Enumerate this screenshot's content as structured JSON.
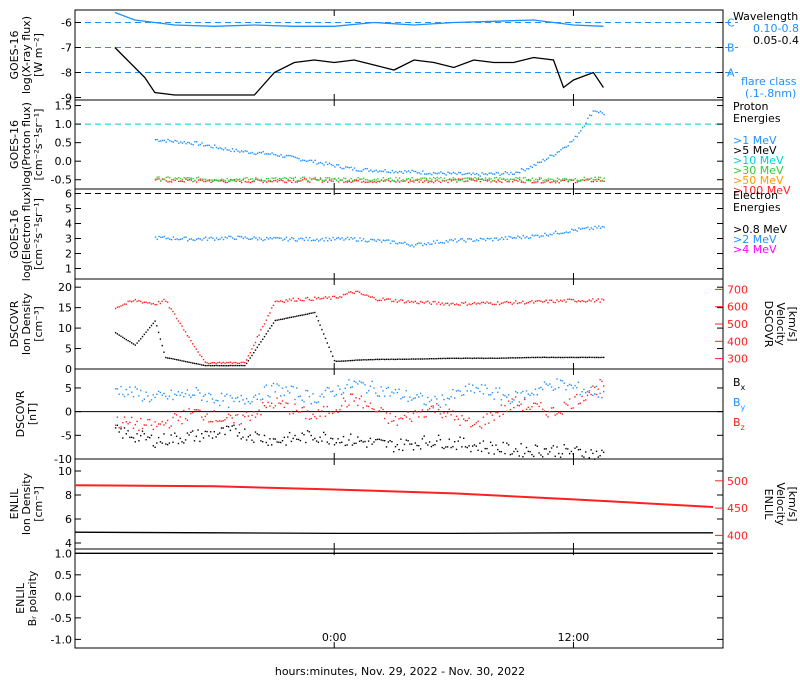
{
  "chart_data": [
    {
      "id": "xray",
      "type": "line",
      "ylabel": [
        "GOES-16",
        "log(X-ray flux)",
        "[W m⁻²]"
      ],
      "yticks": [
        -9,
        -8,
        -7,
        -6
      ],
      "ylim": [
        -9.1,
        -5.5
      ],
      "right_title": [
        "Wavelength"
      ],
      "legend": [
        {
          "label": "0.10-0.8nm",
          "color": "#1e90ff"
        },
        {
          "label": "0.05-0.4nm",
          "color": "#000000"
        }
      ],
      "flare_class_letters": [
        {
          "label": "C",
          "y": -6
        },
        {
          "label": "B",
          "y": -7
        },
        {
          "label": "A",
          "y": -8
        }
      ],
      "flare_class_note": [
        "flare class",
        "(.1-.8nm)"
      ],
      "reference_lines": [
        -6,
        -7,
        -8
      ],
      "series": [
        {
          "color": "#1e90ff",
          "x": [
            -11,
            -10,
            -8,
            -6,
            -4,
            -2,
            0,
            2,
            4,
            6,
            8,
            10,
            12,
            13.5
          ],
          "y": [
            -5.6,
            -5.9,
            -6.1,
            -6.15,
            -6.1,
            -6.15,
            -6.15,
            -6.0,
            -6.1,
            -6.0,
            -5.95,
            -5.9,
            -6.1,
            -6.15
          ]
        },
        {
          "color": "#000000",
          "x": [
            -11,
            -10.5,
            -9.5,
            -9,
            -8,
            -4,
            -3,
            -2,
            -1,
            0,
            1,
            2,
            3,
            4,
            5,
            6,
            7,
            8,
            9,
            10,
            11,
            11.5,
            12,
            13,
            13.5
          ],
          "y": [
            -7.0,
            -7.4,
            -8.2,
            -8.8,
            -8.9,
            -8.9,
            -8.0,
            -7.6,
            -7.5,
            -7.6,
            -7.5,
            -7.7,
            -7.9,
            -7.5,
            -7.6,
            -7.8,
            -7.5,
            -7.6,
            -7.6,
            -7.4,
            -7.5,
            -8.6,
            -8.3,
            -8.0,
            -8.6
          ]
        }
      ]
    },
    {
      "id": "proton",
      "type": "scatter",
      "ylabel": [
        "GOES-16",
        "log(Proton flux)",
        "[cm⁻²s⁻¹sr⁻¹]"
      ],
      "yticks": [
        -0.5,
        0.0,
        0.5,
        1.0,
        1.5
      ],
      "ylim": [
        -0.75,
        1.65
      ],
      "reference_lines": [
        1.0
      ],
      "right_title": [
        "Proton",
        "Energies"
      ],
      "legend": [
        {
          "label": ">1 MeV",
          "color": "#1e90ff"
        },
        {
          "label": ">5 MeV",
          "color": "#000000"
        },
        {
          "label": ">10 MeV",
          "color": "#00d0d0"
        },
        {
          "label": ">30 MeV",
          "color": "#33cc33"
        },
        {
          "label": ">50 MeV",
          "color": "#ff9900"
        },
        {
          "label": ">100 MeV",
          "color": "#ff2020"
        }
      ],
      "series": [
        {
          "color": "#1e90ff",
          "x": [
            -9,
            -7,
            -5,
            -3,
            -1,
            1,
            3,
            5,
            7,
            9,
            10,
            11,
            12,
            12.5,
            13,
            13.5
          ],
          "y": [
            0.6,
            0.5,
            0.3,
            0.2,
            0.0,
            -0.2,
            -0.25,
            -0.3,
            -0.35,
            -0.3,
            -0.1,
            0.2,
            0.6,
            1.0,
            1.4,
            1.3
          ]
        },
        {
          "color": "#ff2020",
          "x": [
            -9,
            -5,
            -1,
            3,
            7,
            11,
            13.5
          ],
          "y": [
            -0.5,
            -0.52,
            -0.5,
            -0.52,
            -0.5,
            -0.52,
            -0.5
          ]
        },
        {
          "color": "#33cc33",
          "x": [
            -9,
            -5,
            -1,
            3,
            7,
            11,
            13.5
          ],
          "y": [
            -0.45,
            -0.47,
            -0.46,
            -0.47,
            -0.46,
            -0.47,
            -0.46
          ]
        }
      ]
    },
    {
      "id": "electron",
      "type": "scatter",
      "ylabel": [
        "GOES-16",
        "log(Electron flux)",
        "[cm⁻²s⁻¹sr⁻¹]"
      ],
      "yticks": [
        1,
        2,
        3,
        4,
        5,
        6
      ],
      "ylim": [
        0.3,
        6.3
      ],
      "reference_lines": [
        6.0
      ],
      "right_title": [
        "Electron",
        "Energies"
      ],
      "legend": [
        {
          "label": ">0.8 MeV",
          "color": "#000000"
        },
        {
          "label": ">2 MeV",
          "color": "#1e90ff"
        },
        {
          "label": ">4 MeV",
          "color": "#ff00ff"
        }
      ],
      "series": [
        {
          "color": "#1e90ff",
          "x": [
            -9,
            -7,
            -5,
            -3,
            -1,
            1,
            2,
            3,
            4,
            5,
            6,
            8,
            10,
            11,
            12,
            13.5
          ],
          "y": [
            3.1,
            3.0,
            3.1,
            3.0,
            3.0,
            3.0,
            2.9,
            2.8,
            2.6,
            2.8,
            2.9,
            3.0,
            3.2,
            3.4,
            3.6,
            3.8
          ]
        }
      ]
    },
    {
      "id": "dscovr-plasma",
      "type": "scatter",
      "ylabel": [
        "DSCOVR",
        "Ion Density",
        "[cm⁻³]"
      ],
      "yticks": [
        0,
        5,
        10,
        15,
        20
      ],
      "ylim": [
        0,
        22
      ],
      "right_label": [
        "DSCOVR",
        "Velocity",
        "[km/s]"
      ],
      "right_yticks": [
        300,
        400,
        500,
        600,
        700
      ],
      "right_ylim": [
        240,
        760
      ],
      "series": [
        {
          "name": "density",
          "color": "#000000",
          "x": [
            -11,
            -10,
            -9,
            -8.5,
            -6.5,
            -4.5,
            -3,
            -2,
            -1,
            0,
            1,
            2,
            4,
            6,
            8,
            10,
            12,
            13.5
          ],
          "y": [
            9,
            6,
            12,
            3,
            1,
            1,
            12,
            13,
            14,
            2,
            2.3,
            2.5,
            2.6,
            2.8,
            2.8,
            3.0,
            3.0,
            3.0
          ]
        },
        {
          "name": "velocity",
          "color": "#ff2020",
          "x": [
            -11,
            -10,
            -9,
            -8.5,
            -6.5,
            -4.5,
            -3,
            -2,
            -1,
            0,
            1,
            2,
            3,
            4,
            6,
            8,
            10,
            12,
            13.5
          ],
          "y": [
            600,
            640,
            620,
            640,
            280,
            280,
            635,
            645,
            650,
            655,
            690,
            650,
            640,
            630,
            620,
            625,
            630,
            640,
            640
          ]
        }
      ]
    },
    {
      "id": "dscovr-mag",
      "type": "scatter",
      "ylabel": [
        "DSCOVR",
        "[nT]"
      ],
      "yticks": [
        -10,
        -5,
        0,
        5
      ],
      "ylim": [
        -10,
        9
      ],
      "legend": [
        {
          "label": "B",
          "sub": "x",
          "color": "#000000"
        },
        {
          "label": "B",
          "sub": "y",
          "color": "#1e90ff"
        },
        {
          "label": "B",
          "sub": "z",
          "color": "#ff2020"
        }
      ],
      "series": [
        {
          "name": "Bx",
          "color": "#000000",
          "x": [
            -11,
            -9,
            -7,
            -5,
            -3,
            -1,
            1,
            3,
            5,
            7,
            9,
            11,
            13.5
          ],
          "y": [
            -4,
            -6,
            -5,
            -4,
            -6,
            -5,
            -6,
            -7,
            -6,
            -7,
            -8,
            -8,
            -9
          ]
        },
        {
          "name": "By",
          "color": "#1e90ff",
          "x": [
            -11,
            -9,
            -7,
            -5,
            -3,
            -1,
            1,
            3,
            5,
            7,
            9,
            11,
            13.5
          ],
          "y": [
            5,
            3,
            4,
            2,
            5,
            3,
            6,
            4,
            2,
            5,
            3,
            6,
            4
          ]
        },
        {
          "name": "Bz",
          "color": "#ff2020",
          "x": [
            -11,
            -9,
            -7,
            -5,
            -3,
            -1,
            1,
            3,
            5,
            7,
            9,
            11,
            13.5
          ],
          "y": [
            -2,
            -3,
            0,
            -2,
            2,
            -1,
            3,
            -2,
            1,
            -3,
            2,
            0,
            6
          ]
        }
      ]
    },
    {
      "id": "enlil-plasma",
      "type": "line",
      "ylabel": [
        "ENLIL",
        "Ion Density",
        "[cm⁻³]"
      ],
      "yticks": [
        4,
        6,
        8,
        10
      ],
      "ylim": [
        3.5,
        11
      ],
      "right_label": [
        "ENLIL",
        "Velocity",
        "[km/s]"
      ],
      "right_yticks": [
        400,
        450,
        500
      ],
      "right_ylim": [
        375,
        540
      ],
      "series": [
        {
          "name": "density",
          "color": "#000000",
          "x": [
            -13,
            -6,
            0,
            6,
            12,
            19
          ],
          "y": [
            4.9,
            4.85,
            4.8,
            4.8,
            4.85,
            4.85
          ]
        },
        {
          "name": "velocity",
          "color": "#ff2020",
          "x": [
            -13,
            -6,
            0,
            6,
            12,
            19
          ],
          "y": [
            492,
            490,
            484,
            477,
            466,
            452
          ]
        }
      ]
    },
    {
      "id": "enlil-polarity",
      "type": "line",
      "ylabel": [
        "ENLIL",
        "Bᵣ polarity"
      ],
      "yticks": [
        -1.0,
        -0.5,
        0.0,
        0.5,
        1.0
      ],
      "ylim": [
        -1.2,
        1.1
      ],
      "series": [
        {
          "name": "polarity",
          "color": "#000000",
          "x": [
            -13,
            19
          ],
          "y": [
            1.0,
            1.0
          ]
        }
      ]
    }
  ],
  "x_axis": {
    "xlim": [
      -13,
      19.5
    ],
    "ticks": [
      {
        "value": 0,
        "label": "0:00"
      },
      {
        "value": 12,
        "label": "12:00"
      }
    ],
    "label": "hours:minutes, Nov. 29, 2022 - Nov. 30, 2022"
  }
}
